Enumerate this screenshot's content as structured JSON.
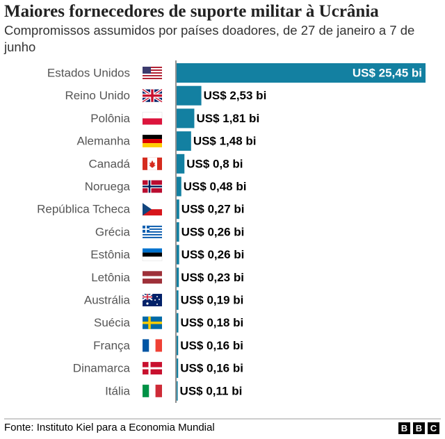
{
  "chart_data": {
    "type": "hbar",
    "title": "Maiores fornecedores de suporte militar à Ucrânia",
    "subtitle": "Compromissos assumidos por países doadores, de 27 de janeiro a 7 de junho",
    "categories": [
      "Estados Unidos",
      "Reino Unido",
      "Polônia",
      "Alemanha",
      "Canadá",
      "Noruega",
      "República Tcheca",
      "Grécia",
      "Estônia",
      "Letônia",
      "Austrália",
      "Suécia",
      "França",
      "Dinamarca",
      "Itália"
    ],
    "values": [
      25.45,
      2.53,
      1.81,
      1.48,
      0.8,
      0.48,
      0.27,
      0.26,
      0.26,
      0.23,
      0.19,
      0.18,
      0.16,
      0.16,
      0.11
    ],
    "value_labels": [
      "US$ 25,45 bi",
      "US$ 2,53 bi",
      "US$ 1,81 bi",
      "US$ 1,48 bi",
      "US$ 0,8 bi",
      "US$ 0,48 bi",
      "US$ 0,27 bi",
      "US$ 0,26 bi",
      "US$ 0,26 bi",
      "US$ 0,23 bi",
      "US$ 0,19 bi",
      "US$ 0,18 bi",
      "US$ 0,16 bi",
      "US$ 0,16 bi",
      "US$ 0,11 bi"
    ],
    "color": "#1380a1",
    "source": "Fonte: Instituto Kiel para a Economia Mundial",
    "logo": [
      "B",
      "B",
      "C"
    ]
  }
}
